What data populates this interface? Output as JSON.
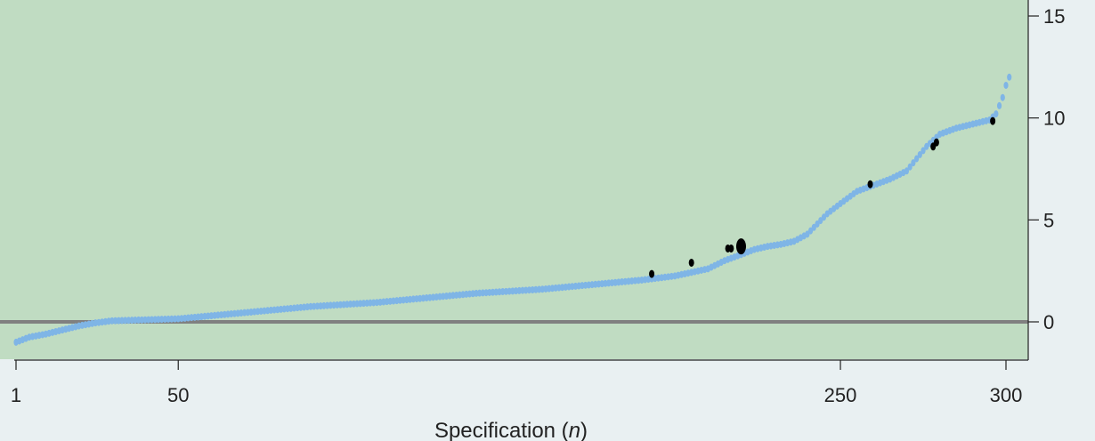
{
  "chart_data": {
    "type": "scatter",
    "title": "",
    "xlabel": "Specification",
    "xlabel_var": "n",
    "ylabel": "",
    "xlim": [
      0,
      305
    ],
    "ylim": [
      -1.8,
      15.8
    ],
    "x_ticks": [
      1,
      50,
      250,
      300
    ],
    "x_tick_labels": [
      "1",
      "50",
      "250",
      "300"
    ],
    "y_ticks": [
      0,
      5,
      10,
      15
    ],
    "y_tick_labels": [
      "0",
      "5",
      "10",
      "15"
    ],
    "y_axis_position": "right",
    "reference_line_y": 0,
    "grid": false,
    "colors": {
      "plot_background": "#c0dcc2",
      "page_background": "#e9f0f2",
      "series": "#7fb5e6",
      "highlight": "#000000",
      "reference_line": "#808080"
    },
    "series": [
      {
        "values_by_n": [
          [
            1,
            -1.0
          ],
          [
            5,
            -0.75
          ],
          [
            10,
            -0.6
          ],
          [
            15,
            -0.4
          ],
          [
            20,
            -0.2
          ],
          [
            25,
            -0.05
          ],
          [
            30,
            0.05
          ],
          [
            40,
            0.1
          ],
          [
            50,
            0.15
          ],
          [
            60,
            0.3
          ],
          [
            70,
            0.45
          ],
          [
            80,
            0.6
          ],
          [
            90,
            0.75
          ],
          [
            100,
            0.85
          ],
          [
            110,
            0.95
          ],
          [
            120,
            1.1
          ],
          [
            130,
            1.25
          ],
          [
            140,
            1.4
          ],
          [
            150,
            1.5
          ],
          [
            160,
            1.6
          ],
          [
            170,
            1.75
          ],
          [
            180,
            1.9
          ],
          [
            190,
            2.05
          ],
          [
            200,
            2.25
          ],
          [
            210,
            2.6
          ],
          [
            215,
            3.0
          ],
          [
            220,
            3.3
          ],
          [
            224,
            3.55
          ],
          [
            228,
            3.7
          ],
          [
            232,
            3.8
          ],
          [
            236,
            3.95
          ],
          [
            240,
            4.3
          ],
          [
            243,
            4.8
          ],
          [
            246,
            5.3
          ],
          [
            250,
            5.8
          ],
          [
            255,
            6.4
          ],
          [
            260,
            6.7
          ],
          [
            265,
            7.0
          ],
          [
            270,
            7.4
          ],
          [
            273,
            8.0
          ],
          [
            276,
            8.6
          ],
          [
            280,
            9.2
          ],
          [
            285,
            9.5
          ],
          [
            290,
            9.7
          ],
          [
            295,
            9.9
          ],
          [
            297,
            10.2
          ],
          [
            299,
            11.0
          ],
          [
            300,
            11.6
          ],
          [
            301,
            12.0
          ]
        ]
      }
    ],
    "highlighted_points": [
      {
        "x": 193,
        "y": 2.35,
        "size": 1
      },
      {
        "x": 205,
        "y": 2.9,
        "size": 1
      },
      {
        "x": 216,
        "y": 3.6,
        "size": 1
      },
      {
        "x": 217,
        "y": 3.6,
        "size": 1
      },
      {
        "x": 220,
        "y": 3.7,
        "size": 4
      },
      {
        "x": 259,
        "y": 6.75,
        "size": 1
      },
      {
        "x": 278,
        "y": 8.6,
        "size": 1
      },
      {
        "x": 279,
        "y": 8.8,
        "size": 1
      },
      {
        "x": 296,
        "y": 9.85,
        "size": 1
      }
    ]
  }
}
